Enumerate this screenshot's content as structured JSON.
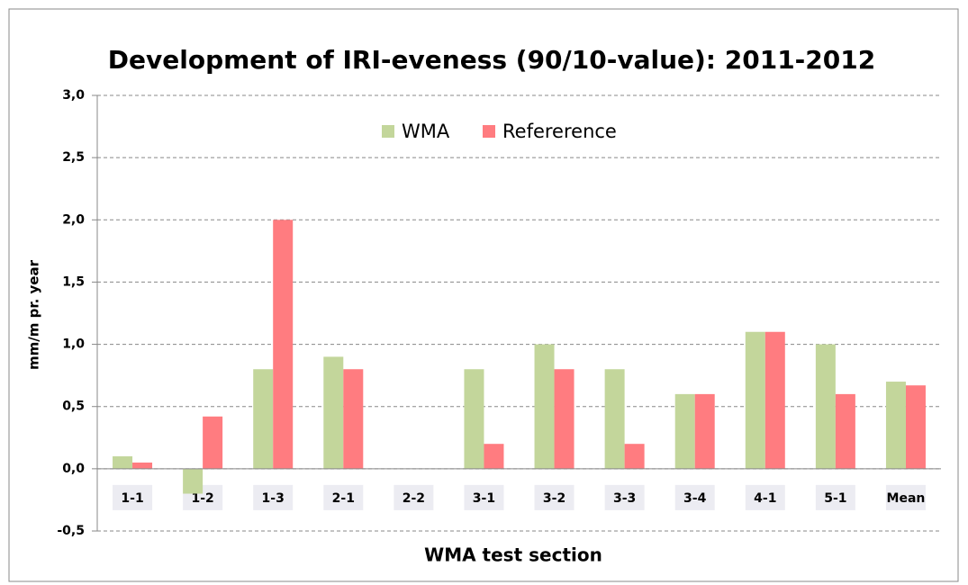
{
  "chart_data": {
    "type": "bar",
    "title": "Development of IRI-eveness (90/10-value): 2011-2012",
    "x_label": "WMA test section",
    "y_label": "mm/m pr. year",
    "categories": [
      "1-1",
      "1-2",
      "1-3",
      "2-1",
      "2-2",
      "3-1",
      "3-2",
      "3-3",
      "3-4",
      "4-1",
      "5-1",
      "Mean"
    ],
    "series": [
      {
        "name": "WMA",
        "color": "#c3d69b",
        "values": [
          0.1,
          -0.2,
          0.8,
          0.9,
          null,
          0.8,
          1.0,
          0.8,
          0.6,
          1.1,
          1.0,
          0.7
        ]
      },
      {
        "name": "Refererence",
        "color": "#ff7c80",
        "values": [
          0.05,
          0.42,
          2.0,
          0.8,
          null,
          0.2,
          0.8,
          0.2,
          0.6,
          1.1,
          0.6,
          0.67
        ]
      }
    ],
    "ylim": [
      -0.5,
      3.0
    ],
    "yticks": [
      {
        "value": -0.5,
        "label": "-0,5"
      },
      {
        "value": 0,
        "label": "0,0"
      },
      {
        "value": 0.5,
        "label": "0,5"
      },
      {
        "value": 1.0,
        "label": "1,0"
      },
      {
        "value": 1.5,
        "label": "1,5"
      },
      {
        "value": 2.0,
        "label": "2,0"
      },
      {
        "value": 2.5,
        "label": "2,5"
      },
      {
        "value": 3.0,
        "label": "3,0"
      }
    ],
    "grid": true
  }
}
